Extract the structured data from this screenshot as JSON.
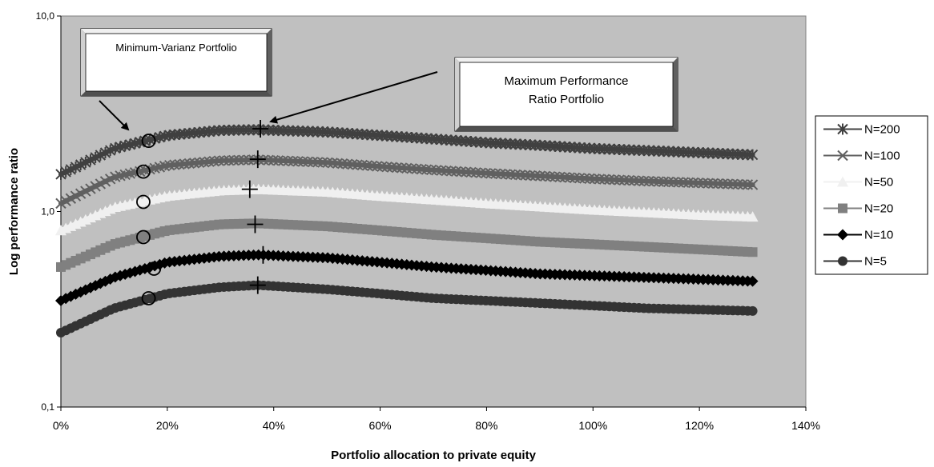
{
  "chart_data": {
    "type": "line",
    "xlabel": "Portfolio allocation to private equity",
    "ylabel": "Log performance ratio",
    "y_scale": "log",
    "xlim": [
      0,
      1.4
    ],
    "ylim": [
      0.1,
      10
    ],
    "x_ticks": [
      "0%",
      "20%",
      "40%",
      "60%",
      "80%",
      "100%",
      "120%",
      "140%"
    ],
    "y_ticks": [
      "0,1",
      "1,0",
      "10,0"
    ],
    "grid": false,
    "plot_background": "#c0c0c0",
    "legend_position": "right",
    "x": [
      0,
      0.1,
      0.2,
      0.3,
      0.37,
      0.5,
      0.6,
      0.7,
      0.8,
      0.9,
      1.0,
      1.1,
      1.2,
      1.3
    ],
    "series": [
      {
        "name": "N=200",
        "marker": "star",
        "color": "#404040",
        "values": [
          1.55,
          2.1,
          2.45,
          2.6,
          2.62,
          2.55,
          2.45,
          2.35,
          2.25,
          2.18,
          2.1,
          2.05,
          2.0,
          1.95
        ]
      },
      {
        "name": "N=100",
        "marker": "x",
        "color": "#606060",
        "values": [
          1.1,
          1.5,
          1.72,
          1.82,
          1.84,
          1.78,
          1.7,
          1.63,
          1.57,
          1.52,
          1.47,
          1.43,
          1.4,
          1.37
        ]
      },
      {
        "name": "N=50",
        "marker": "triangle",
        "color": "#f0f0f0",
        "values": [
          0.8,
          1.05,
          1.2,
          1.28,
          1.3,
          1.26,
          1.2,
          1.15,
          1.1,
          1.06,
          1.02,
          0.99,
          0.96,
          0.94
        ]
      },
      {
        "name": "N=20",
        "marker": "square",
        "color": "#808080",
        "values": [
          0.52,
          0.68,
          0.8,
          0.86,
          0.87,
          0.84,
          0.8,
          0.76,
          0.73,
          0.7,
          0.68,
          0.66,
          0.64,
          0.62
        ]
      },
      {
        "name": "N=10",
        "marker": "diamond",
        "color": "#000000",
        "values": [
          0.35,
          0.46,
          0.55,
          0.59,
          0.6,
          0.58,
          0.55,
          0.52,
          0.5,
          0.48,
          0.47,
          0.46,
          0.45,
          0.44
        ]
      },
      {
        "name": "N=5",
        "marker": "circle",
        "color": "#333333",
        "values": [
          0.24,
          0.32,
          0.38,
          0.41,
          0.42,
          0.4,
          0.38,
          0.36,
          0.35,
          0.34,
          0.33,
          0.32,
          0.315,
          0.31
        ]
      }
    ],
    "min_variance_points": [
      {
        "x": 0.165,
        "y": 2.3
      },
      {
        "x": 0.155,
        "y": 1.6
      },
      {
        "x": 0.155,
        "y": 1.12
      },
      {
        "x": 0.155,
        "y": 0.74
      },
      {
        "x": 0.175,
        "y": 0.51
      },
      {
        "x": 0.165,
        "y": 0.36
      }
    ],
    "max_ratio_points": [
      {
        "x": 0.375,
        "y": 2.65
      },
      {
        "x": 0.37,
        "y": 1.85
      },
      {
        "x": 0.355,
        "y": 1.3
      },
      {
        "x": 0.365,
        "y": 0.86
      },
      {
        "x": 0.38,
        "y": 0.6
      },
      {
        "x": 0.37,
        "y": 0.42
      }
    ],
    "annotations": {
      "min_variance": "Minimum-Varianz Portfolio",
      "max_ratio_line1": "Maximum Performance",
      "max_ratio_line2": "Ratio Portfolio"
    }
  }
}
